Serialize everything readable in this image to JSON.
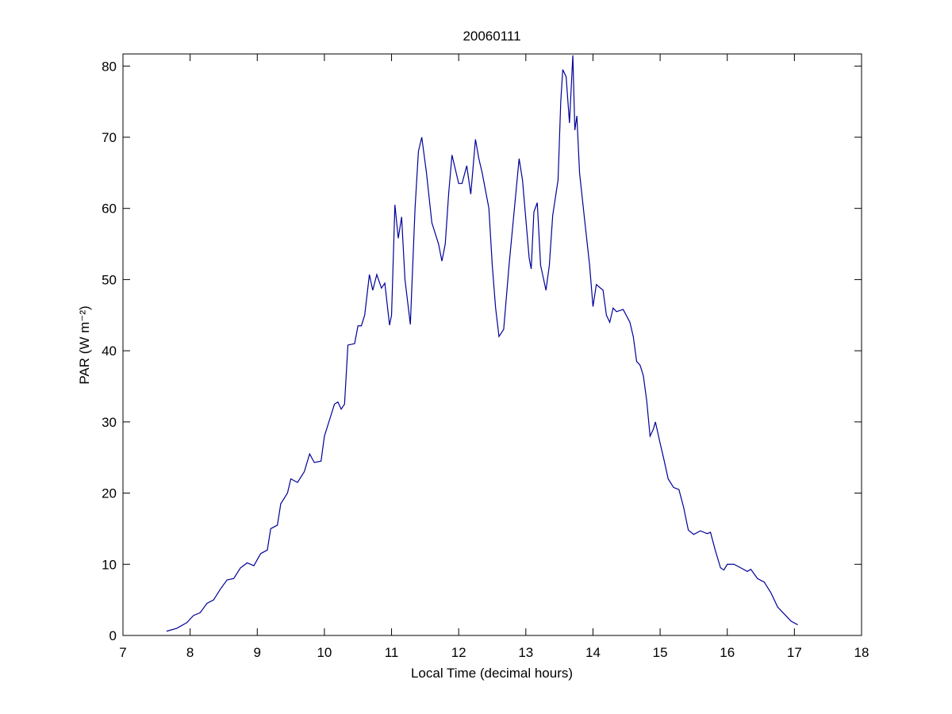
{
  "chart_data": {
    "type": "line",
    "title": "20060111",
    "xlabel": "Local Time (decimal hours)",
    "ylabel": "PAR (W m⁻²)",
    "color": "#000099",
    "xlim": [
      7,
      18
    ],
    "xticks": [
      7,
      8,
      9,
      10,
      11,
      12,
      13,
      14,
      15,
      16,
      17,
      18
    ],
    "ylim": [
      0,
      81.7
    ],
    "yticks": [
      0,
      10,
      20,
      30,
      40,
      50,
      60,
      70,
      80
    ],
    "grid": false,
    "x": [
      7.65,
      7.8,
      7.95,
      8.05,
      8.15,
      8.25,
      8.35,
      8.45,
      8.55,
      8.65,
      8.75,
      8.85,
      8.95,
      9.05,
      9.15,
      9.2,
      9.3,
      9.35,
      9.45,
      9.5,
      9.6,
      9.7,
      9.78,
      9.85,
      9.95,
      10.0,
      10.1,
      10.15,
      10.2,
      10.25,
      10.3,
      10.35,
      10.45,
      10.5,
      10.55,
      10.6,
      10.67,
      10.72,
      10.78,
      10.85,
      10.9,
      10.97,
      11.0,
      11.05,
      11.1,
      11.15,
      11.2,
      11.28,
      11.35,
      11.4,
      11.45,
      11.52,
      11.6,
      11.7,
      11.75,
      11.8,
      11.85,
      11.9,
      12.0,
      12.05,
      12.12,
      12.18,
      12.25,
      12.3,
      12.35,
      12.45,
      12.5,
      12.55,
      12.6,
      12.67,
      12.75,
      12.85,
      12.9,
      12.95,
      13.05,
      13.08,
      13.12,
      13.17,
      13.22,
      13.3,
      13.35,
      13.4,
      13.48,
      13.52,
      13.55,
      13.6,
      13.65,
      13.7,
      13.73,
      13.76,
      13.8,
      13.88,
      13.95,
      14.0,
      14.05,
      14.15,
      14.2,
      14.25,
      14.3,
      14.35,
      14.45,
      14.55,
      14.6,
      14.65,
      14.7,
      14.75,
      14.8,
      14.85,
      14.9,
      14.93,
      15.0,
      15.05,
      15.12,
      15.2,
      15.28,
      15.35,
      15.42,
      15.5,
      15.6,
      15.7,
      15.75,
      15.82,
      15.9,
      15.95,
      16.0,
      16.1,
      16.2,
      16.3,
      16.35,
      16.45,
      16.55,
      16.65,
      16.75,
      16.85,
      16.95,
      17.05
    ],
    "values": [
      0.6,
      1.0,
      1.8,
      2.8,
      3.2,
      4.5,
      5.0,
      6.5,
      7.8,
      8.0,
      9.5,
      10.2,
      9.8,
      11.5,
      12.0,
      15.0,
      15.5,
      18.5,
      20.0,
      22.0,
      21.5,
      23.0,
      25.5,
      24.3,
      24.5,
      28.0,
      31.0,
      32.5,
      32.8,
      31.8,
      32.5,
      40.8,
      41.0,
      43.5,
      43.5,
      45.0,
      50.7,
      48.5,
      50.7,
      48.8,
      49.5,
      43.6,
      45.0,
      60.5,
      55.8,
      58.8,
      50.0,
      43.7,
      60.0,
      68.0,
      70.0,
      65.0,
      58.0,
      55.0,
      52.6,
      55.0,
      62.0,
      67.5,
      63.5,
      63.5,
      66.0,
      62.0,
      69.7,
      67.0,
      65.0,
      60.0,
      52.0,
      46.0,
      42.0,
      43.0,
      52.0,
      62.0,
      67.0,
      64.0,
      53.0,
      51.5,
      59.5,
      60.8,
      52.0,
      48.5,
      52.0,
      59.0,
      64.0,
      75.0,
      79.5,
      78.5,
      72.0,
      81.5,
      71.0,
      73.0,
      65.0,
      58.0,
      52.0,
      46.2,
      49.3,
      48.5,
      45.0,
      44.0,
      46.0,
      45.5,
      45.8,
      44.0,
      42.0,
      38.5,
      38.0,
      36.5,
      33.0,
      28.0,
      29.0,
      30.0,
      27.0,
      25.0,
      22.0,
      20.8,
      20.5,
      18.0,
      14.8,
      14.2,
      14.7,
      14.3,
      14.5,
      12.0,
      9.5,
      9.2,
      10.0,
      10.0,
      9.5,
      9.0,
      9.3,
      8.0,
      7.5,
      6.0,
      4.0,
      3.0,
      2.0,
      1.5
    ]
  }
}
